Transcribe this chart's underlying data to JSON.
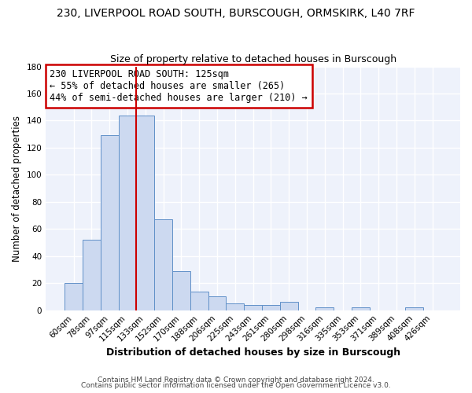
{
  "title1": "230, LIVERPOOL ROAD SOUTH, BURSCOUGH, ORMSKIRK, L40 7RF",
  "title2": "Size of property relative to detached houses in Burscough",
  "xlabel": "Distribution of detached houses by size in Burscough",
  "ylabel": "Number of detached properties",
  "bin_labels": [
    "60sqm",
    "78sqm",
    "97sqm",
    "115sqm",
    "133sqm",
    "152sqm",
    "170sqm",
    "188sqm",
    "206sqm",
    "225sqm",
    "243sqm",
    "261sqm",
    "280sqm",
    "298sqm",
    "316sqm",
    "335sqm",
    "353sqm",
    "371sqm",
    "389sqm",
    "408sqm",
    "426sqm"
  ],
  "bar_values": [
    20,
    52,
    129,
    144,
    144,
    67,
    29,
    14,
    10,
    5,
    4,
    4,
    6,
    0,
    2,
    0,
    2,
    0,
    0,
    2,
    0
  ],
  "bar_color": "#ccd9f0",
  "bar_edge_color": "#6090c8",
  "vline_color": "#cc0000",
  "vline_pos": 3.5,
  "ylim": [
    0,
    180
  ],
  "yticks": [
    0,
    20,
    40,
    60,
    80,
    100,
    120,
    140,
    160,
    180
  ],
  "annotation_text": "230 LIVERPOOL ROAD SOUTH: 125sqm\n← 55% of detached houses are smaller (265)\n44% of semi-detached houses are larger (210) →",
  "annotation_box_edgecolor": "#cc0000",
  "footer1": "Contains HM Land Registry data © Crown copyright and database right 2024.",
  "footer2": "Contains public sector information licensed under the Open Government Licence v3.0.",
  "bg_color": "#ffffff",
  "plot_bg_color": "#eef2fb",
  "grid_color": "#ffffff"
}
